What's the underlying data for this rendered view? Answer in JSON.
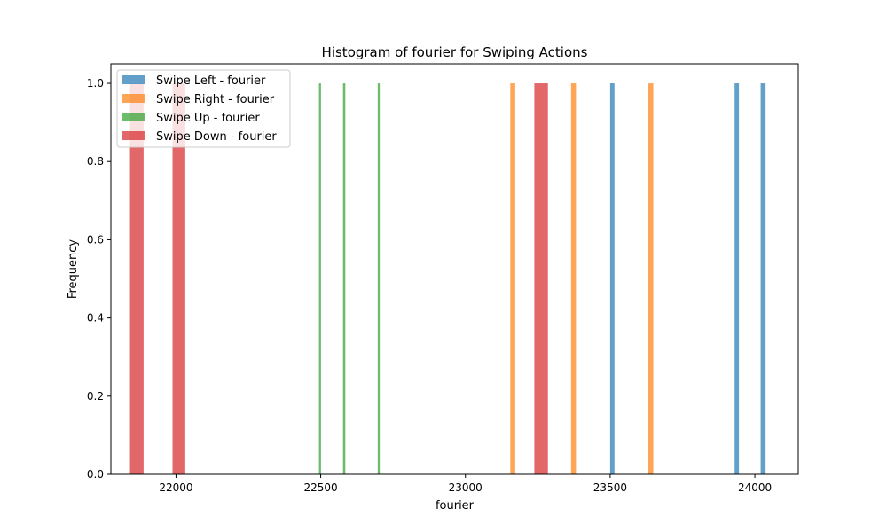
{
  "chart_data": {
    "type": "bar",
    "title": "Histogram of fourier for Swiping Actions",
    "xlabel": "fourier",
    "ylabel": "Frequency",
    "xlim": [
      21775,
      24150
    ],
    "ylim": [
      0,
      1.05
    ],
    "xticks": [
      22000,
      22500,
      23000,
      23500,
      24000
    ],
    "yticks": [
      0.0,
      0.2,
      0.4,
      0.6,
      0.8,
      1.0
    ],
    "grid": false,
    "legend_position": "top-left",
    "series": [
      {
        "name": "Swipe Left - fourier",
        "color": "#1f77b4",
        "bins": [
          {
            "x0": 23500,
            "x1": 23515,
            "value": 1
          },
          {
            "x0": 23930,
            "x1": 23945,
            "value": 1
          },
          {
            "x0": 24020,
            "x1": 24037,
            "value": 1
          }
        ]
      },
      {
        "name": "Swipe Right - fourier",
        "color": "#ff7f0e",
        "bins": [
          {
            "x0": 23155,
            "x1": 23172,
            "value": 1
          },
          {
            "x0": 23365,
            "x1": 23382,
            "value": 1
          },
          {
            "x0": 23632,
            "x1": 23649,
            "value": 1
          }
        ]
      },
      {
        "name": "Swipe Up - fourier",
        "color": "#2ca02c",
        "bins": [
          {
            "x0": 22494,
            "x1": 22501,
            "value": 1
          },
          {
            "x0": 22577,
            "x1": 22585,
            "value": 1
          },
          {
            "x0": 22697,
            "x1": 22704,
            "value": 1
          }
        ]
      },
      {
        "name": "Swipe Down - fourier",
        "color": "#d62728",
        "bins": [
          {
            "x0": 21838,
            "x1": 21888,
            "value": 1
          },
          {
            "x0": 21988,
            "x1": 22032,
            "value": 1
          },
          {
            "x0": 23238,
            "x1": 23285,
            "value": 1
          }
        ]
      }
    ]
  }
}
